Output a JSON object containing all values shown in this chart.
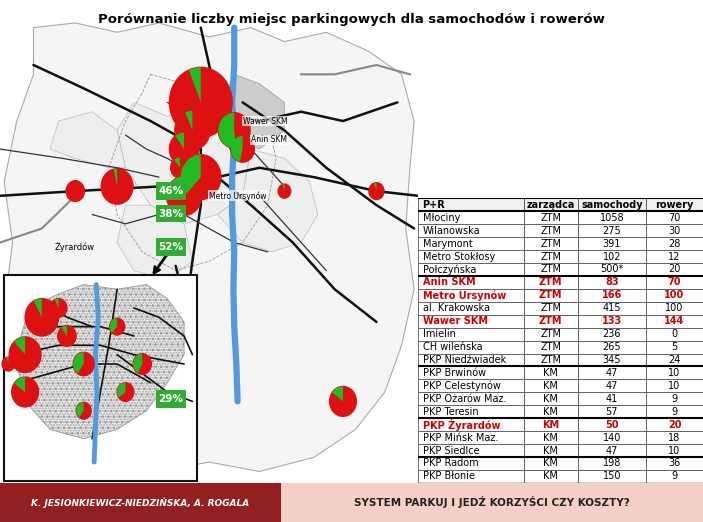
{
  "title": "Porównanie liczby miejsc parkingowych dla samochodów i rowerów",
  "table_header": [
    "P+R",
    "zarządca",
    "samochody",
    "rowery"
  ],
  "table_data": [
    [
      "Młociny",
      "ZTM",
      "1058",
      "70",
      false
    ],
    [
      "Wilanowska",
      "ZTM",
      "275",
      "30",
      false
    ],
    [
      "Marymont",
      "ZTM",
      "391",
      "28",
      false
    ],
    [
      "Metro Stokłosy",
      "ZTM",
      "102",
      "12",
      false
    ],
    [
      "Połczyńska",
      "ZTM",
      "500*",
      "20",
      false
    ],
    [
      "Anin SKM",
      "ZTM",
      "83",
      "70",
      true
    ],
    [
      "Metro Ursynów",
      "ZTM",
      "166",
      "100",
      true
    ],
    [
      "al. Krakowska",
      "ZTM",
      "415",
      "100",
      false
    ],
    [
      "Wawer SKM",
      "ZTM",
      "133",
      "144",
      true
    ],
    [
      "Imielin",
      "ZTM",
      "236",
      "0",
      false
    ],
    [
      "CH wileńska",
      "ZTM",
      "265",
      "5",
      false
    ],
    [
      "PKP Niedźwiadek",
      "ZTM",
      "345",
      "24",
      false
    ],
    [
      "PKP Brwinów",
      "KM",
      "47",
      "10",
      false
    ],
    [
      "PKP Celestynów",
      "KM",
      "47",
      "10",
      false
    ],
    [
      "PKP Ożarów Maz.",
      "KM",
      "41",
      "9",
      false
    ],
    [
      "PKP Teresin",
      "KM",
      "57",
      "9",
      false
    ],
    [
      "PKP Żyrardów",
      "KM",
      "50",
      "20",
      true
    ],
    [
      "PKP Mińsk Maz.",
      "KM",
      "140",
      "18",
      false
    ],
    [
      "PKP Siedlce",
      "KM",
      "47",
      "10",
      false
    ],
    [
      "PKP Radom",
      "KM",
      "198",
      "36",
      false
    ],
    [
      "PKP Błonie",
      "KM",
      "150",
      "9",
      false
    ]
  ],
  "highlight_color": "#cc0000",
  "normal_color": "#000000",
  "thick_border_rows": [
    4,
    11,
    15,
    18
  ],
  "bottom_left_text": "K. JESIONKIEWICZ-NIEDZIŃSKA, A. ROGALA",
  "bottom_right_text": "SYSTEM PARKUJ I JEDŹ KORZYŚCI CZY KOSZTY?",
  "map_bg": "#ffffff",
  "map_region_color": "#f0f0f0",
  "river_color": "#5599dd",
  "road_color": "#222222",
  "parking_car_color": "#dd1111",
  "parking_bike_color": "#22bb22",
  "inset_hatch_color": "#cccccc",
  "pct_labels": [
    "46%",
    "38%",
    "52%",
    "29%"
  ]
}
